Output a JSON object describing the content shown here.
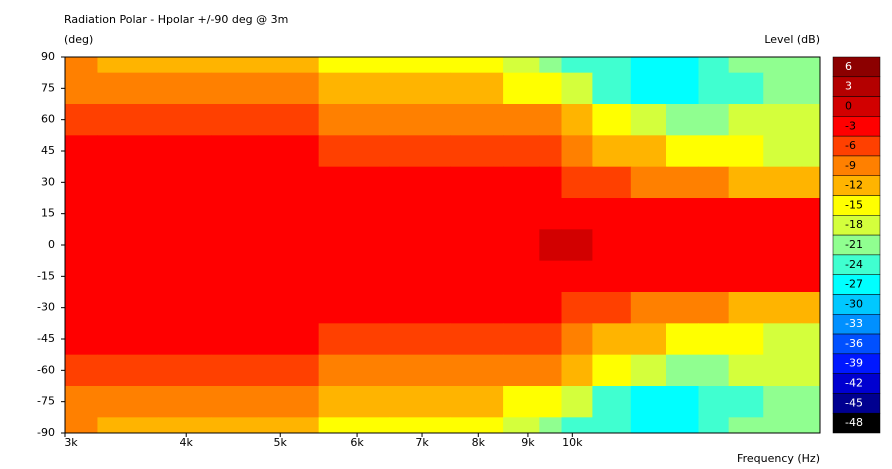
{
  "chart_data": {
    "type": "contour",
    "title": "Radiation Polar - Hpolar +/-90 deg @ 3m",
    "y_label": "(deg)",
    "x_label": "Frequency  (Hz)",
    "colorbar_label": "Level  (dB)",
    "log_x": true,
    "xlim": [
      3000,
      18000
    ],
    "xticks": [
      {
        "value": 3000,
        "label": "3k"
      },
      {
        "value": 4000,
        "label": "4k"
      },
      {
        "value": 5000,
        "label": "5k"
      },
      {
        "value": 6000,
        "label": "6k"
      },
      {
        "value": 7000,
        "label": "7k"
      },
      {
        "value": 8000,
        "label": "8k"
      },
      {
        "value": 9000,
        "label": "9k"
      },
      {
        "value": 10000,
        "label": "10k"
      }
    ],
    "ylim": [
      -90,
      90
    ],
    "yticks": [
      90,
      75,
      60,
      45,
      30,
      15,
      0,
      -15,
      -30,
      -45,
      -60,
      -75,
      -90
    ],
    "x": [
      3000,
      3500,
      4000,
      4500,
      5000,
      6000,
      7000,
      8000,
      9000,
      9500,
      10000,
      11000,
      12000,
      13000,
      14000,
      15000,
      16500,
      18000
    ],
    "y": [
      90,
      75,
      60,
      45,
      30,
      15,
      0,
      -15,
      -30,
      -45,
      -60,
      -75,
      -90
    ],
    "z": [
      [
        -9,
        -10,
        -10,
        -10.5,
        -11,
        -13,
        -14,
        -15,
        -18,
        -20,
        -22,
        -24,
        -26,
        -25,
        -22,
        -21,
        -20,
        -20
      ],
      [
        -7,
        -7,
        -7,
        -7.5,
        -8,
        -10,
        -11,
        -11,
        -13,
        -14,
        -17,
        -22,
        -25,
        -26,
        -24,
        -22,
        -20,
        -19
      ],
      [
        -4,
        -4,
        -4,
        -4.5,
        -5,
        -7,
        -8,
        -7.5,
        -8,
        -9,
        -11,
        -15,
        -18,
        -20,
        -19,
        -18,
        -17,
        -16
      ],
      [
        -1,
        -1,
        -1,
        -2,
        -2.5,
        -4,
        -5,
        -4.5,
        -4,
        -5,
        -7,
        -10,
        -12,
        -14,
        -15,
        -15,
        -16,
        -17
      ],
      [
        -1,
        -1,
        -1,
        -1,
        -1,
        -1.5,
        -2,
        -2,
        -2,
        -2,
        -3.5,
        -5,
        -7,
        -8,
        -9,
        -10,
        -11,
        -12
      ],
      [
        -1,
        -1,
        -1,
        -1,
        -1,
        -1,
        -1,
        -1,
        -1,
        -1,
        -1,
        -1.5,
        -2,
        -2,
        -2.5,
        -2.5,
        -2.5,
        -2.5
      ],
      [
        -1,
        -1,
        -1,
        -1,
        -1,
        -1,
        -1,
        -1,
        -1,
        1,
        1,
        -1,
        -1,
        -1,
        -1,
        -1,
        -1,
        -1
      ],
      [
        -1,
        -1,
        -1,
        -1,
        -1,
        -1,
        -1,
        -1,
        -1,
        -1,
        -1,
        -1.5,
        -2,
        -2,
        -2.5,
        -2.5,
        -2.5,
        -2.5
      ],
      [
        -1,
        -1,
        -1,
        -1,
        -1,
        -1.5,
        -2,
        -2,
        -2,
        -2,
        -3.5,
        -5,
        -7,
        -8,
        -9,
        -10,
        -11,
        -12
      ],
      [
        -1,
        -1,
        -1,
        -2,
        -2.5,
        -4,
        -5,
        -4.5,
        -4,
        -5,
        -7,
        -10,
        -12,
        -14,
        -15,
        -15,
        -16,
        -17
      ],
      [
        -4,
        -4,
        -4,
        -4.5,
        -5,
        -7,
        -8,
        -7.5,
        -8,
        -9,
        -11,
        -15,
        -18,
        -20,
        -19,
        -18,
        -17,
        -16
      ],
      [
        -7,
        -7,
        -7,
        -7.5,
        -8,
        -10,
        -11,
        -11,
        -13,
        -14,
        -17,
        -22,
        -25,
        -26,
        -24,
        -22,
        -20,
        -19
      ],
      [
        -9,
        -10,
        -10,
        -10.5,
        -11,
        -13,
        -14,
        -15,
        -18,
        -20,
        -22,
        -24,
        -26,
        -25,
        -22,
        -21,
        -20,
        -20
      ]
    ],
    "colorbar": {
      "levels": [
        6,
        3,
        0,
        -3,
        -6,
        -9,
        -12,
        -15,
        -18,
        -21,
        -24,
        -27,
        -30,
        -33,
        -36,
        -39,
        -42,
        -45,
        -48
      ],
      "colors": [
        "#8c0000",
        "#b40000",
        "#d20000",
        "#ff0000",
        "#ff4000",
        "#ff8000",
        "#ffb400",
        "#ffff00",
        "#d4ff3c",
        "#90ff90",
        "#40ffd0",
        "#00ffff",
        "#00c8ff",
        "#0090ff",
        "#0050ff",
        "#0018ff",
        "#0000d0",
        "#000090",
        "#000000"
      ]
    }
  }
}
